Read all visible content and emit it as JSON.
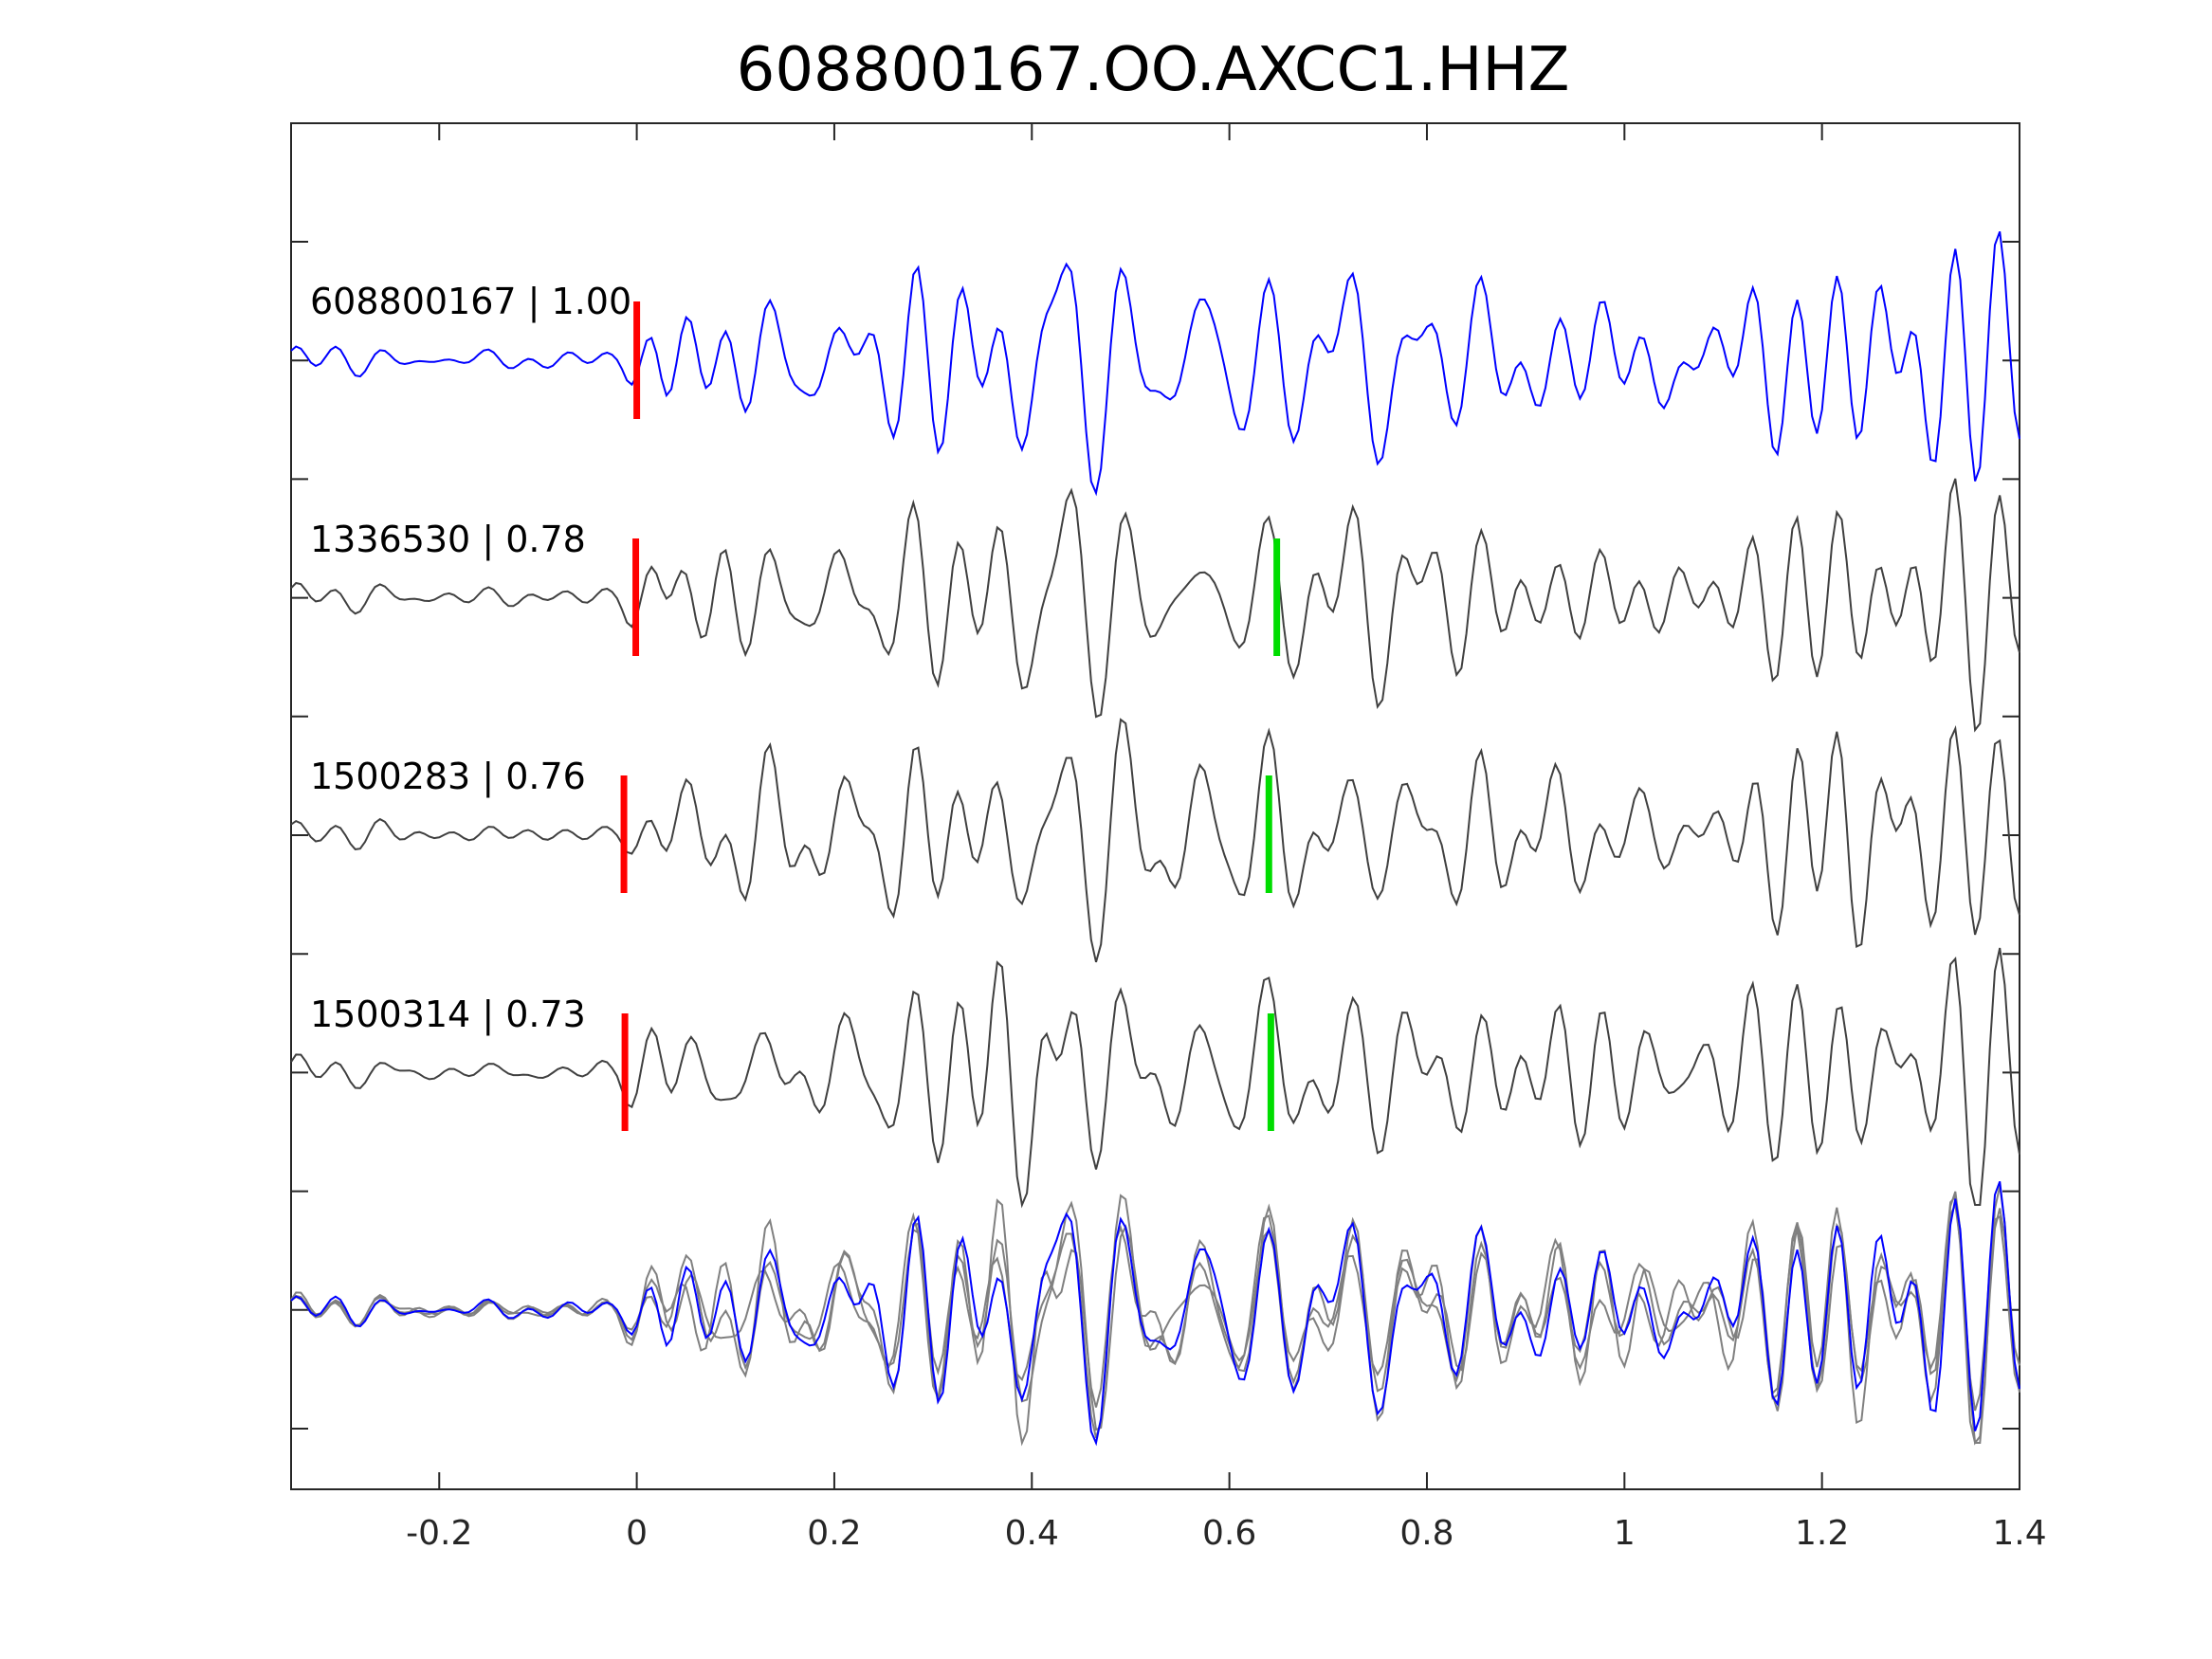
{
  "chart_data": {
    "type": "line",
    "title": "608800167.OO.AXCC1.HHZ",
    "xlabel": "",
    "ylabel": "",
    "xlim": [
      -0.35,
      1.4
    ],
    "xticks": [
      -0.2,
      0,
      0.2,
      0.4,
      0.6,
      0.8,
      1,
      1.2,
      1.4
    ],
    "xtick_labels": [
      "-0.2",
      "0",
      "0.2",
      "0.4",
      "0.6",
      "0.8",
      "1",
      "1.2",
      "1.4"
    ],
    "ytick_count": 11,
    "grid": false,
    "sample_interval": 0.005,
    "traces": [
      {
        "id": "608800167",
        "cc": "1.00",
        "label": "608800167 | 1.00",
        "color": "#0000ff",
        "red_pick": 0.0,
        "green_pick": null,
        "seed": 11
      },
      {
        "id": "1336530",
        "cc": "0.78",
        "label": "1336530 | 0.78",
        "color": "#404040",
        "red_pick": -0.001,
        "green_pick": 0.648,
        "seed": 23
      },
      {
        "id": "1500283",
        "cc": "0.76",
        "label": "1500283 | 0.76",
        "color": "#404040",
        "red_pick": -0.013,
        "green_pick": 0.64,
        "seed": 37
      },
      {
        "id": "1500314",
        "cc": "0.73",
        "label": "1500314 | 0.73",
        "color": "#404040",
        "red_pick": -0.012,
        "green_pick": 0.642,
        "seed": 41
      }
    ],
    "overlay": {
      "reference_color": "#0000ff",
      "others_color": "#808080"
    },
    "pick_colors": {
      "red": "#ff0000",
      "green": "#00dd00"
    }
  }
}
